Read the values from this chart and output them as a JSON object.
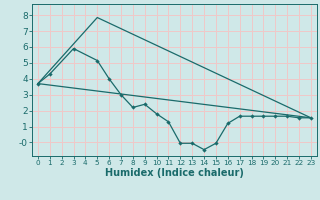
{
  "xlabel": "Humidex (Indice chaleur)",
  "background_color": "#cfe8e8",
  "grid_color": "#f0c8c8",
  "line_color": "#1a6b6b",
  "xlim": [
    -0.5,
    23.5
  ],
  "ylim": [
    -0.85,
    8.7
  ],
  "xticks": [
    0,
    1,
    2,
    3,
    4,
    5,
    6,
    7,
    8,
    9,
    10,
    11,
    12,
    13,
    14,
    15,
    16,
    17,
    18,
    19,
    20,
    21,
    22,
    23
  ],
  "yticks": [
    0,
    1,
    2,
    3,
    4,
    5,
    6,
    7,
    8
  ],
  "ytick_labels": [
    "-0",
    "1",
    "2",
    "3",
    "4",
    "5",
    "6",
    "7",
    "8"
  ],
  "straight_line1_x": [
    0,
    23
  ],
  "straight_line1_y": [
    3.7,
    1.55
  ],
  "straight_line2_x": [
    0,
    5,
    23
  ],
  "straight_line2_y": [
    3.7,
    7.85,
    1.55
  ],
  "curve_x": [
    0,
    1,
    3,
    5,
    6,
    7,
    8,
    9,
    10,
    11,
    12,
    13,
    14,
    15,
    16,
    17,
    18,
    19,
    20,
    21,
    22,
    23
  ],
  "curve_y": [
    3.7,
    4.3,
    5.9,
    5.15,
    4.0,
    3.0,
    2.2,
    2.4,
    1.8,
    1.3,
    -0.05,
    -0.05,
    -0.45,
    -0.05,
    1.2,
    1.65,
    1.65,
    1.65,
    1.65,
    1.65,
    1.55,
    1.55
  ]
}
